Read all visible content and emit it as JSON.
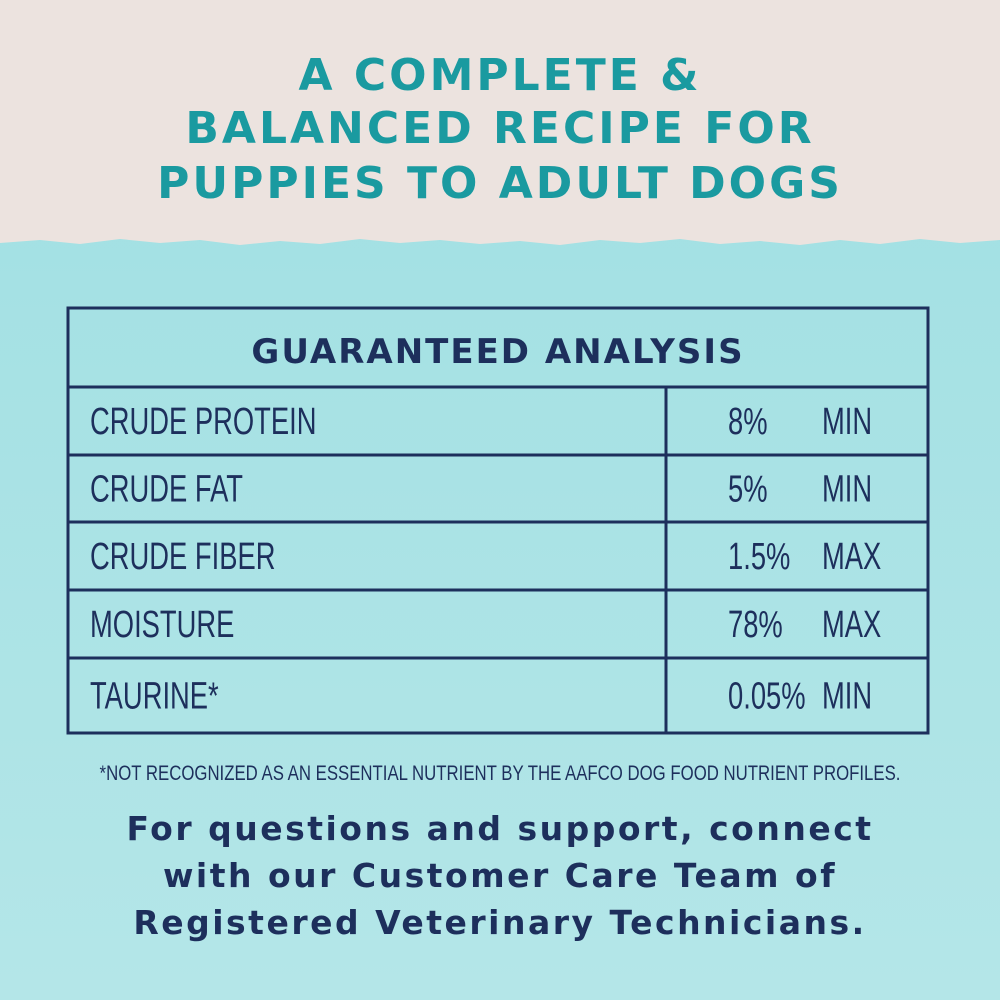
{
  "header": {
    "lines": [
      "A COMPLETE &",
      "BALANCED RECIPE FOR",
      "PUPPIES TO ADULT DOGS"
    ]
  },
  "table": {
    "title": "GUARANTEED ANALYSIS",
    "rows": [
      [
        "CRUDE PROTEIN",
        "8%",
        "MIN"
      ],
      [
        "CRUDE FAT",
        "5%",
        "MIN"
      ],
      [
        "CRUDE FIBER",
        "1.5%",
        "MAX"
      ],
      [
        "MOISTURE",
        "78%",
        "MAX"
      ],
      [
        "TAURINE*",
        "0.05%",
        "MIN"
      ]
    ]
  },
  "footnote": "*NOT RECOGNIZED AS AN ESSENTIAL NUTRIENT BY THE AAFCO DOG FOOD NUTRIENT PROFILES.",
  "support": {
    "lines": [
      "For questions and support, connect",
      "with our Customer Care Team of",
      "Registered Veterinary Technicians."
    ]
  }
}
